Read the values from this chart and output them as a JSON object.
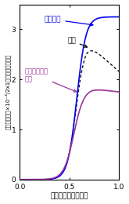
{
  "title": "",
  "xlabel": "時間（フェムト秒）",
  "ylabel": "放出電子数（×10⁻³/2x1格子周期あたり）",
  "xlim": [
    0,
    1.0
  ],
  "ylim": [
    0,
    3.5
  ],
  "yticks": [
    0,
    1,
    2,
    3
  ],
  "xticks": [
    0,
    0.5,
    1.0
  ],
  "background_color": "#ffffff",
  "line_hydrogen_color": "#0000ee",
  "line_clean_color": "#111111",
  "line_hydroxyl_color": "#993399",
  "label_hydrogen": "水素修飾",
  "label_clean": "清浄",
  "label_hydroxyl_line1": "水素・水酸基",
  "label_hydroxyl_line2": "修飾"
}
